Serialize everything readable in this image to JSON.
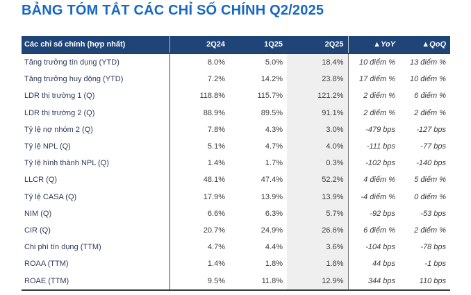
{
  "page": {
    "title": "BẢNG TÓM TẮT CÁC CHỈ SỐ CHÍNH Q2/2025"
  },
  "colors": {
    "title_blue": "#1667C6",
    "header_navy": "#1F4478",
    "highlight_column_gray": "#EFEFEF",
    "border_dark": "#3A3A3A",
    "label_navy": "#2C3A58",
    "number_gray": "#3B3B3B"
  },
  "table": {
    "header": [
      "Các chỉ số chính (hợp nhất)",
      "2Q24",
      "1Q25",
      "2Q25",
      "▲YoY",
      "▲QoQ"
    ],
    "rows": [
      {
        "label": "Tăng trưởng tín dụng (YTD)",
        "q2_24": "8.0%",
        "q1_25": "5.0%",
        "q2_25": "18.4%",
        "yoy": "10 điểm %",
        "qoq": "13 điểm %"
      },
      {
        "label": "Tăng trưởng huy động (YTD)",
        "q2_24": "7.2%",
        "q1_25": "14.2%",
        "q2_25": "23.8%",
        "yoy": "17 điểm %",
        "qoq": "10 điểm %"
      },
      {
        "label": "LDR thị trường 1 (Q)",
        "q2_24": "118.8%",
        "q1_25": "115.7%",
        "q2_25": "121.2%",
        "yoy": "2 điểm %",
        "qoq": "6 điểm %"
      },
      {
        "label": "LDR thị trường 2 (Q)",
        "q2_24": "88.9%",
        "q1_25": "89.5%",
        "q2_25": "91.1%",
        "yoy": "2 điểm %",
        "qoq": "2 điểm %"
      },
      {
        "label": "Tỷ lệ nợ nhóm 2 (Q)",
        "q2_24": "7.8%",
        "q1_25": "4.3%",
        "q2_25": "3.0%",
        "yoy": "-479 bps",
        "qoq": "-127 bps"
      },
      {
        "label": "Tỷ lệ NPL (Q)",
        "q2_24": "5.1%",
        "q1_25": "4.7%",
        "q2_25": "4.0%",
        "yoy": "-111 bps",
        "qoq": "-77 bps"
      },
      {
        "label": "Tỷ lệ hình thành NPL (Q)",
        "q2_24": "1.4%",
        "q1_25": "1.7%",
        "q2_25": "0.3%",
        "yoy": "-102 bps",
        "qoq": "-140 bps"
      },
      {
        "label": "LLCR (Q)",
        "q2_24": "48.1%",
        "q1_25": "47.4%",
        "q2_25": "52.2%",
        "yoy": "4 điểm %",
        "qoq": "5 điểm %"
      },
      {
        "label": "Tỷ lệ CASA (Q)",
        "q2_24": "17.9%",
        "q1_25": "13.9%",
        "q2_25": "13.9%",
        "yoy": "-4 điểm %",
        "qoq": "0 điểm %"
      },
      {
        "label": "NIM (Q)",
        "q2_24": "6.6%",
        "q1_25": "6.3%",
        "q2_25": "5.7%",
        "yoy": "-92 bps",
        "qoq": "-53 bps"
      },
      {
        "label": "CIR (Q)",
        "q2_24": "20.7%",
        "q1_25": "24.9%",
        "q2_25": "26.6%",
        "yoy": "6 điểm %",
        "qoq": "2 điểm %"
      },
      {
        "label": "Chi phí tín dụng (TTM)",
        "q2_24": "4.7%",
        "q1_25": "4.4%",
        "q2_25": "3.6%",
        "yoy": "-104 bps",
        "qoq": "-78 bps"
      },
      {
        "label": "ROAA (TTM)",
        "q2_24": "1.4%",
        "q1_25": "1.8%",
        "q2_25": "1.8%",
        "yoy": "44 bps",
        "qoq": "-1 bps"
      },
      {
        "label": "ROAE (TTM)",
        "q2_24": "9.5%",
        "q1_25": "11.8%",
        "q2_25": "12.9%",
        "yoy": "344 bps",
        "qoq": "110 bps"
      }
    ]
  }
}
